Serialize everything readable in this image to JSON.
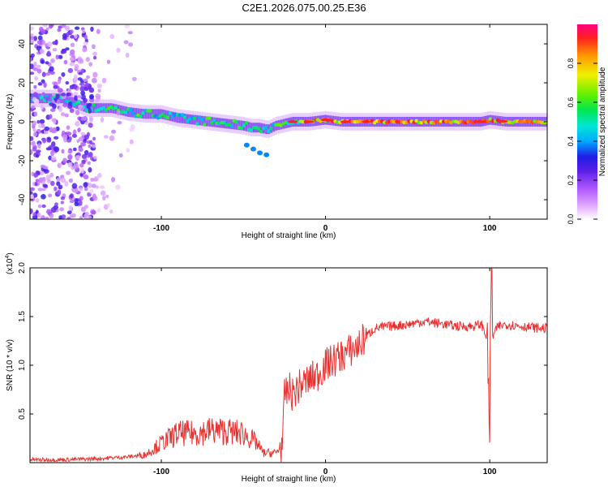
{
  "title": "C2E1.2026.075.00.25.E36",
  "chart_data": [
    {
      "type": "heatmap",
      "xlabel": "Height of straight line (km)",
      "ylabel": "Frequency (Hz)",
      "xlim": [
        -180,
        135
      ],
      "ylim": [
        -50,
        50
      ],
      "xticks": [
        -100,
        0,
        100
      ],
      "yticks": [
        -40,
        -20,
        0,
        20,
        40
      ],
      "colorbar": {
        "label": "Normalized spectral amplitude",
        "ticks": [
          "0.0",
          "0.2",
          "0.4",
          "0.6",
          "0.8"
        ],
        "range": [
          0,
          1
        ]
      },
      "ridge": {
        "x": [
          -180,
          -160,
          -145,
          -130,
          -120,
          -110,
          -100,
          -90,
          -80,
          -70,
          -60,
          -50,
          -45,
          -40,
          -35,
          -30,
          -20,
          -10,
          0,
          10,
          20,
          40,
          60,
          80,
          95,
          100,
          110,
          135
        ],
        "y": [
          12,
          12,
          7,
          7,
          5,
          4,
          4,
          2,
          1,
          0,
          -1,
          -2,
          -3,
          -3,
          -4,
          -2,
          0,
          0,
          1,
          0,
          0,
          0,
          0,
          0,
          0,
          1,
          0,
          0
        ]
      },
      "secondary_track": {
        "x": [
          -48,
          -44,
          -40,
          -36
        ],
        "y": [
          -12,
          -14,
          -16,
          -17
        ]
      }
    },
    {
      "type": "line",
      "xlabel": "Height of straight line (km)",
      "ylabel": "SNR (10 * v/v)",
      "scale_label": "(x10",
      "scale_exponent": "4",
      "xlim": [
        -180,
        135
      ],
      "ylim": [
        0,
        2.0
      ],
      "xticks": [
        -100,
        0,
        100
      ],
      "yticks": [
        "0.5",
        "1.0",
        "1.5",
        "2.0"
      ],
      "series": [
        {
          "name": "SNR",
          "color": "#e8322f",
          "x": [
            -180,
            -160,
            -140,
            -120,
            -110,
            -100,
            -90,
            -80,
            -70,
            -60,
            -50,
            -42,
            -38,
            -30,
            -26,
            -25,
            -22,
            -20,
            -15,
            -10,
            -5,
            0,
            5,
            10,
            15,
            20,
            25,
            30,
            40,
            50,
            60,
            70,
            80,
            90,
            95,
            98,
            100,
            101,
            102,
            105,
            110,
            120,
            130,
            135
          ],
          "y": [
            0.03,
            0.03,
            0.04,
            0.06,
            0.08,
            0.2,
            0.3,
            0.3,
            0.33,
            0.32,
            0.3,
            0.2,
            0.1,
            0.1,
            0.2,
            0.7,
            0.75,
            0.7,
            0.8,
            0.85,
            0.9,
            1.0,
            1.05,
            1.1,
            1.15,
            1.2,
            1.3,
            1.38,
            1.4,
            1.42,
            1.45,
            1.43,
            1.4,
            1.4,
            1.42,
            1.3,
            0.45,
            2.0,
            1.3,
            1.4,
            1.42,
            1.4,
            1.38,
            1.38
          ]
        }
      ]
    }
  ]
}
